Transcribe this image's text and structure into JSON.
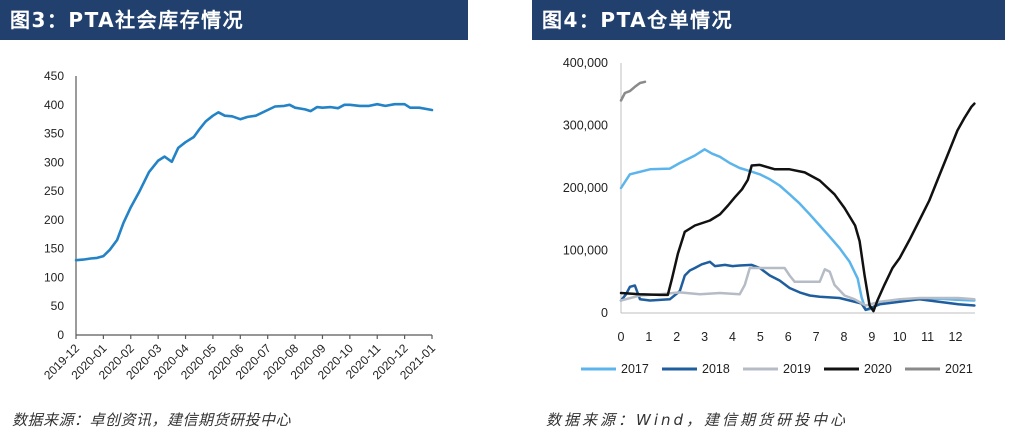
{
  "colors": {
    "header_bg": "#22406E",
    "header_text": "#FFFFFF",
    "source_text": "#333333"
  },
  "panels": [
    {
      "source": "数据来源：卓创资讯，建信期货研投中心"
    },
    {
      "source": "数据来源：Wind，建信期货研投中心"
    }
  ],
  "chart_data": [
    {
      "type": "line",
      "title": "图3：PTA社会库存情况",
      "ylim": [
        0,
        450
      ],
      "yticks": [
        0,
        50,
        100,
        150,
        200,
        250,
        300,
        350,
        400,
        450
      ],
      "xticks": [
        "2019-12",
        "2020-01",
        "2020-02",
        "2020-03",
        "2020-04",
        "2020-05",
        "2020-06",
        "2020-07",
        "2020-08",
        "2020-09",
        "2020-10",
        "2020-11",
        "2020-12",
        "2021-01"
      ],
      "grid": false,
      "legend": "none",
      "series": [
        {
          "color": "#2383C6",
          "x": [
            "2019-12-01",
            "2019-12-09",
            "2019-12-17",
            "2019-12-24",
            "2020-01-01",
            "2020-01-08",
            "2020-01-16",
            "2020-01-23",
            "2020-02-01",
            "2020-02-10",
            "2020-02-21",
            "2020-03-01",
            "2020-03-08",
            "2020-03-16",
            "2020-03-23",
            "2020-04-01",
            "2020-04-10",
            "2020-04-16",
            "2020-04-23",
            "2020-05-01",
            "2020-05-07",
            "2020-05-14",
            "2020-05-22",
            "2020-06-01",
            "2020-06-09",
            "2020-06-18",
            "2020-07-01",
            "2020-07-09",
            "2020-07-19",
            "2020-07-25",
            "2020-08-01",
            "2020-08-12",
            "2020-08-18",
            "2020-08-25",
            "2020-09-01",
            "2020-09-10",
            "2020-09-18",
            "2020-09-25",
            "2020-10-01",
            "2020-10-12",
            "2020-10-22",
            "2020-11-01",
            "2020-11-10",
            "2020-11-20",
            "2020-12-01",
            "2020-12-07",
            "2020-12-17",
            "2021-01-01"
          ],
          "y": [
            130,
            131,
            133,
            134,
            137,
            148,
            165,
            195,
            222,
            248,
            283,
            303,
            310,
            301,
            325,
            335,
            344,
            357,
            371,
            381,
            387,
            381,
            380,
            375,
            379,
            381,
            391,
            397,
            398,
            400,
            395,
            392,
            389,
            396,
            395,
            396,
            394,
            400,
            400,
            398,
            398,
            401,
            398,
            401,
            401,
            395,
            395,
            391
          ]
        }
      ]
    },
    {
      "type": "line",
      "title": "图4：PTA仓单情况",
      "xlim": [
        0,
        12.7
      ],
      "ylim": [
        0,
        400000
      ],
      "xticks": [
        0,
        1,
        2,
        3,
        4,
        5,
        6,
        7,
        8,
        9,
        10,
        11,
        12
      ],
      "yticks": [
        0,
        100000,
        200000,
        300000,
        400000
      ],
      "ytick_labels": [
        "0",
        "100,000",
        "200,000",
        "300,000",
        "400,000"
      ],
      "grid": false,
      "legend": "bottom",
      "series": [
        {
          "name": "2017",
          "color": "#5BB5EC",
          "x": [
            0,
            0.32,
            1.04,
            1.75,
            2.11,
            2.65,
            3.0,
            3.26,
            3.55,
            3.9,
            4.26,
            4.62,
            4.98,
            5.34,
            5.69,
            6.05,
            6.41,
            6.77,
            7.13,
            7.49,
            7.84,
            8.2,
            8.49,
            8.63,
            8.78,
            8.92,
            9.28,
            10.0,
            10.7,
            11.4,
            12.1,
            12.68
          ],
          "y": [
            200000,
            222000,
            230000,
            231000,
            240000,
            252000,
            262000,
            255000,
            250000,
            240000,
            232000,
            227000,
            222000,
            214000,
            204000,
            190000,
            175000,
            158000,
            140000,
            122000,
            104000,
            82000,
            55000,
            25000,
            5000,
            6000,
            15000,
            20000,
            22000,
            23000,
            21000,
            20000
          ]
        },
        {
          "name": "2018",
          "color": "#1F5E9E",
          "x": [
            0,
            0.18,
            0.32,
            0.5,
            0.68,
            1.04,
            1.4,
            1.75,
            2.11,
            2.29,
            2.47,
            2.65,
            2.9,
            3.19,
            3.37,
            3.73,
            4.0,
            4.26,
            4.69,
            4.98,
            5.34,
            5.69,
            6.05,
            6.41,
            6.77,
            7.13,
            7.49,
            7.84,
            8.2,
            8.63,
            8.78,
            9.28,
            10.0,
            10.7,
            11.4,
            12.1,
            12.68
          ],
          "y": [
            20000,
            30000,
            42000,
            44000,
            22000,
            20000,
            21000,
            22000,
            35000,
            60000,
            68000,
            72000,
            78000,
            82000,
            75000,
            77000,
            75000,
            76000,
            77000,
            72000,
            60000,
            52000,
            40000,
            33000,
            28000,
            26000,
            25000,
            24000,
            20000,
            15000,
            5000,
            14000,
            18000,
            22000,
            18000,
            14000,
            12000
          ]
        },
        {
          "name": "2019",
          "color": "#B5BCC6",
          "x": [
            0,
            0.68,
            1.4,
            2.11,
            2.83,
            3.55,
            4.26,
            4.44,
            4.62,
            4.98,
            5.52,
            5.87,
            6.05,
            6.23,
            6.77,
            7.13,
            7.31,
            7.49,
            7.66,
            8.02,
            8.38,
            8.78,
            9.28,
            10.0,
            10.7,
            11.4,
            12.1,
            12.68
          ],
          "y": [
            20000,
            28000,
            30000,
            33000,
            30000,
            32000,
            30000,
            45000,
            72000,
            72000,
            72000,
            72000,
            60000,
            50000,
            50000,
            50000,
            70000,
            66000,
            45000,
            28000,
            22000,
            12000,
            18000,
            22000,
            24000,
            24000,
            24000,
            22000
          ]
        },
        {
          "name": "2020",
          "color": "#111111",
          "x": [
            0,
            0.68,
            1.4,
            1.68,
            1.83,
            2.04,
            2.29,
            2.65,
            3.19,
            3.55,
            3.84,
            4.08,
            4.34,
            4.55,
            4.69,
            4.98,
            5.52,
            6.05,
            6.59,
            7.13,
            7.66,
            8.02,
            8.4,
            8.56,
            8.74,
            8.92,
            9.06,
            9.2,
            9.45,
            9.74,
            10.0,
            10.35,
            10.7,
            11.06,
            11.42,
            11.78,
            12.07,
            12.32,
            12.57,
            12.68
          ],
          "y": [
            32000,
            30000,
            29000,
            29000,
            55000,
            95000,
            130000,
            140000,
            148000,
            158000,
            172000,
            185000,
            198000,
            213000,
            236000,
            237000,
            230000,
            230000,
            225000,
            212000,
            190000,
            168000,
            140000,
            115000,
            60000,
            12000,
            3000,
            20000,
            45000,
            72000,
            88000,
            117000,
            148000,
            180000,
            220000,
            260000,
            292000,
            312000,
            330000,
            335000
          ]
        },
        {
          "name": "2021",
          "color": "#8A8A8A",
          "x": [
            0,
            0.14,
            0.32,
            0.5,
            0.68,
            0.86
          ],
          "y": [
            340000,
            352000,
            355000,
            362000,
            368000,
            370000
          ]
        }
      ]
    }
  ]
}
